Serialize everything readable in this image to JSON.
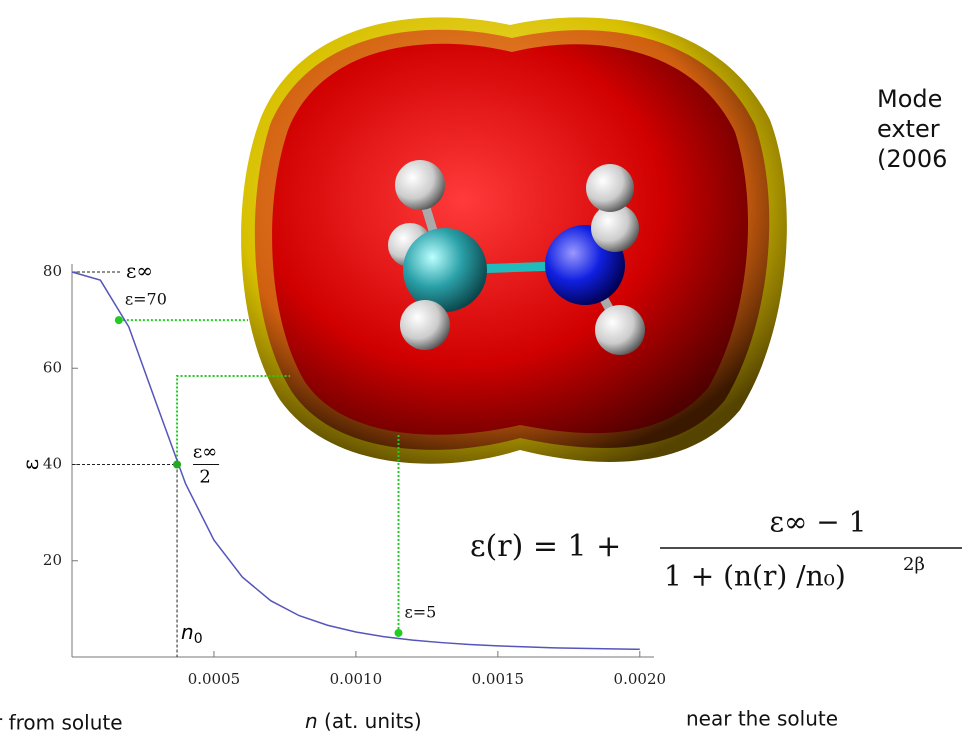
{
  "chart_data": {
    "type": "line",
    "y_label": "ε",
    "x_label": {
      "var": "n",
      "rest": " (at. units)"
    },
    "left_label": "r from solute",
    "right_label": "near the solute",
    "x": [
      0,
      0.0001,
      0.0002,
      0.0003,
      0.0004,
      0.0005,
      0.0006,
      0.0007,
      0.0008,
      0.0009,
      0.001,
      0.0011,
      0.0012,
      0.0013,
      0.0014,
      0.0015,
      0.0016,
      0.0017,
      0.0018,
      0.0019,
      0.002
    ],
    "series": [
      {
        "color": "#5555bb",
        "values": [
          80,
          78.3,
          68.6,
          52.2,
          36.0,
          24.3,
          16.6,
          11.7,
          8.6,
          6.6,
          5.2,
          4.2,
          3.5,
          3.0,
          2.6,
          2.3,
          2.1,
          1.9,
          1.8,
          1.7,
          1.6
        ]
      }
    ],
    "xlim": [
      0,
      0.00205
    ],
    "ylim": [
      0,
      80
    ],
    "xticks": [
      0.0005,
      {
        "value": 0.001,
        "label": "0.0010"
      },
      0.0015,
      {
        "value": 0.002,
        "label": "0.0020"
      }
    ],
    "yticks": [
      20,
      40,
      60,
      80
    ],
    "markers": [
      {
        "x": 0.000165,
        "y": 70,
        "color": "#22cc22",
        "label": "ε=70"
      },
      {
        "x": 0.00037,
        "y": 40,
        "color": "#22aa22"
      },
      {
        "x": 0.00115,
        "y": 5,
        "color": "#22cc22",
        "label": "ε=5"
      }
    ],
    "annotations": {
      "eps_inf": "ε∞",
      "half_num": "ε∞",
      "half_den": "2",
      "n0_base": "n",
      "n0_sub": "0"
    }
  },
  "side_text": [
    "Mode",
    "exter",
    "(2006"
  ],
  "formula": {
    "lhs": "ε(r) = 1 +",
    "numerator": "ε∞ − 1",
    "denominator": "1 + (n(r) /n₀)",
    "exponent": "2β"
  }
}
